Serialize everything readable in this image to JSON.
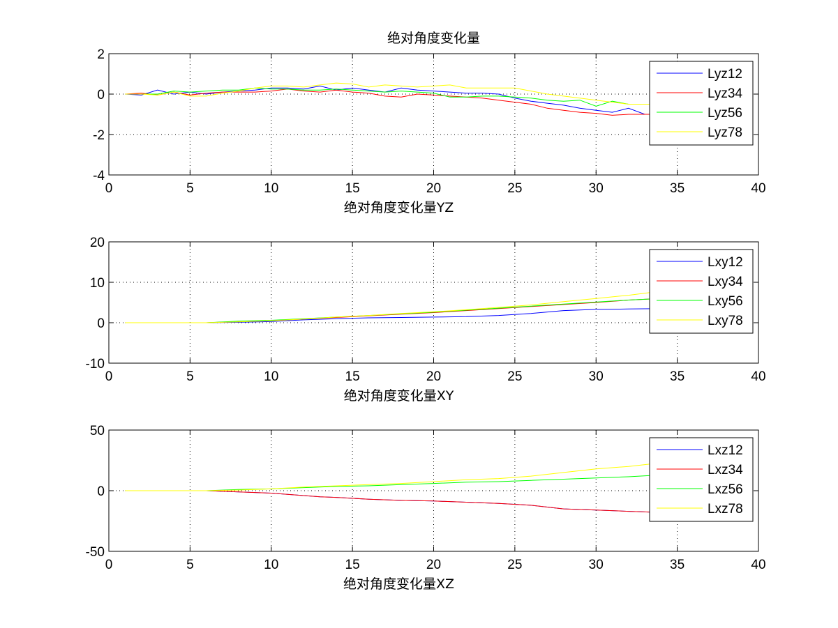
{
  "chart_data": [
    {
      "type": "line",
      "title": "绝对角度变化量",
      "xlabel": "绝对角度变化量YZ",
      "ylabel": "",
      "xlim": [
        0,
        40
      ],
      "ylim": [
        -4,
        2
      ],
      "xticks": [
        0,
        5,
        10,
        15,
        20,
        25,
        30,
        35,
        40
      ],
      "yticks": [
        2,
        0,
        -2,
        -4
      ],
      "grid": true,
      "legend_position": "top-right",
      "series": [
        {
          "name": "Lyz12",
          "color": "#0000ff",
          "x": [
            1,
            2,
            3,
            4,
            5,
            6,
            7,
            8,
            9,
            10,
            11,
            12,
            13,
            14,
            15,
            16,
            17,
            18,
            19,
            20,
            21,
            22,
            23,
            24,
            25,
            26,
            27,
            28,
            29,
            30,
            31,
            32,
            33,
            34,
            35,
            36
          ],
          "y": [
            0,
            -0.05,
            0.2,
            0,
            0.1,
            0,
            0.1,
            0.15,
            0.2,
            0.3,
            0.3,
            0.25,
            0.4,
            0.2,
            0.3,
            0.2,
            0.1,
            0.3,
            0.2,
            0.15,
            0.1,
            0.05,
            0.05,
            0,
            -0.2,
            -0.35,
            -0.45,
            -0.55,
            -0.7,
            -0.8,
            -0.9,
            -0.7,
            -1.0,
            -1.0,
            -1.0,
            -1.0
          ]
        },
        {
          "name": "Lyz34",
          "color": "#ff0000",
          "x": [
            1,
            2,
            3,
            4,
            5,
            6,
            7,
            8,
            9,
            10,
            11,
            12,
            13,
            14,
            15,
            16,
            17,
            18,
            19,
            20,
            21,
            22,
            23,
            24,
            25,
            26,
            27,
            28,
            29,
            30,
            31,
            32,
            33,
            34,
            35,
            36
          ],
          "y": [
            0,
            0.05,
            -0.05,
            0.1,
            -0.05,
            0.05,
            0.1,
            0.1,
            0.1,
            0.15,
            0.25,
            0.15,
            0.1,
            0.2,
            0.1,
            0.05,
            -0.1,
            -0.15,
            0,
            -0.05,
            -0.1,
            -0.15,
            -0.2,
            -0.3,
            -0.4,
            -0.5,
            -0.7,
            -0.8,
            -0.9,
            -0.95,
            -1.05,
            -1.0,
            -1.0,
            -1.0,
            -1.0,
            -1.0
          ]
        },
        {
          "name": "Lyz56",
          "color": "#00ff00",
          "x": [
            1,
            2,
            3,
            4,
            5,
            6,
            7,
            8,
            9,
            10,
            11,
            12,
            13,
            14,
            15,
            16,
            17,
            18,
            19,
            20,
            21,
            22,
            23,
            24,
            25,
            26,
            27,
            28,
            29,
            30,
            31,
            32,
            33,
            34,
            35,
            36
          ],
          "y": [
            0,
            0,
            0,
            0.15,
            0.1,
            0.15,
            0.2,
            0.2,
            0.3,
            0.25,
            0.25,
            0.2,
            0.2,
            0.25,
            0.2,
            0.15,
            0.1,
            0.15,
            0.1,
            0.05,
            -0.15,
            -0.15,
            -0.1,
            -0.1,
            -0.15,
            -0.2,
            -0.3,
            -0.35,
            -0.3,
            -0.6,
            -0.35,
            -0.5,
            -0.5,
            -0.5,
            -0.5,
            -0.5
          ]
        },
        {
          "name": "Lyz78",
          "color": "#ffff00",
          "x": [
            1,
            2,
            3,
            4,
            5,
            6,
            7,
            8,
            9,
            10,
            11,
            12,
            13,
            14,
            15,
            16,
            17,
            18,
            19,
            20,
            21,
            22,
            23,
            24,
            25,
            26,
            27,
            28,
            29,
            30,
            31,
            32,
            33,
            34,
            35,
            36
          ],
          "y": [
            0,
            0,
            -0.05,
            0.1,
            -0.1,
            -0.1,
            0.05,
            0.15,
            0.3,
            0.4,
            0.4,
            0.35,
            0.45,
            0.55,
            0.5,
            0.35,
            0.45,
            0.4,
            0.35,
            0.4,
            0.45,
            0.3,
            0.3,
            0.3,
            0.3,
            0.15,
            0,
            -0.1,
            -0.2,
            -0.3,
            -0.4,
            -0.5,
            -0.5,
            -0.5,
            -0.5,
            -0.5
          ]
        }
      ]
    },
    {
      "type": "line",
      "title": "",
      "xlabel": "绝对角度变化量XY",
      "ylabel": "",
      "xlim": [
        0,
        40
      ],
      "ylim": [
        -10,
        20
      ],
      "xticks": [
        0,
        5,
        10,
        15,
        20,
        25,
        30,
        35,
        40
      ],
      "yticks": [
        20,
        10,
        0,
        -10
      ],
      "grid": true,
      "legend_position": "top-right",
      "series": [
        {
          "name": "Lxy12",
          "color": "#0000ff",
          "x": [
            1,
            6,
            8,
            10,
            12,
            14,
            16,
            18,
            20,
            22,
            24,
            26,
            28,
            30,
            32,
            34,
            36
          ],
          "y": [
            0,
            0,
            0.1,
            0.3,
            0.7,
            1.0,
            1.2,
            1.3,
            1.4,
            1.5,
            1.8,
            2.3,
            3.0,
            3.3,
            3.4,
            3.5,
            3.5
          ]
        },
        {
          "name": "Lxy34",
          "color": "#ff0000",
          "x": [
            1,
            6,
            8,
            10,
            12,
            14,
            16,
            18,
            20,
            22,
            24,
            26,
            28,
            30,
            32,
            34,
            36
          ],
          "y": [
            0,
            0,
            0.3,
            0.5,
            0.9,
            1.3,
            1.7,
            2.1,
            2.5,
            3.0,
            3.5,
            4.0,
            4.5,
            5.0,
            5.6,
            6.0,
            6.2
          ]
        },
        {
          "name": "Lxy56",
          "color": "#00ff00",
          "x": [
            1,
            6,
            8,
            10,
            12,
            14,
            16,
            18,
            20,
            22,
            24,
            26,
            28,
            30,
            32,
            34,
            36
          ],
          "y": [
            0,
            0,
            0.4,
            0.6,
            1.0,
            1.4,
            1.8,
            2.2,
            2.6,
            3.1,
            3.6,
            4.1,
            4.6,
            5.1,
            5.6,
            6.0,
            6.2
          ]
        },
        {
          "name": "Lxy78",
          "color": "#ffff00",
          "x": [
            1,
            6,
            8,
            10,
            12,
            14,
            16,
            18,
            20,
            22,
            24,
            26,
            28,
            30,
            32,
            34,
            36
          ],
          "y": [
            0,
            0,
            0.2,
            0.5,
            0.9,
            1.4,
            1.8,
            2.3,
            2.7,
            3.2,
            3.8,
            4.4,
            5.2,
            6.0,
            6.8,
            7.8,
            8.5
          ]
        }
      ]
    },
    {
      "type": "line",
      "title": "",
      "xlabel": "绝对角度变化量XZ",
      "ylabel": "",
      "xlim": [
        0,
        40
      ],
      "ylim": [
        -50,
        50
      ],
      "xticks": [
        0,
        5,
        10,
        15,
        20,
        25,
        30,
        35,
        40
      ],
      "yticks": [
        50,
        0,
        -50
      ],
      "grid": true,
      "legend_position": "top-right",
      "series": [
        {
          "name": "Lxz12",
          "color": "#0000ff",
          "x": [
            1,
            6,
            8,
            10,
            11,
            12,
            13,
            14,
            16,
            18,
            20,
            22,
            24,
            26,
            28,
            30,
            32,
            34,
            36
          ],
          "y": [
            0,
            0,
            -1,
            -2,
            -3,
            -4,
            -5,
            -5.5,
            -7,
            -8,
            -8.5,
            -9.5,
            -10.5,
            -12,
            -15,
            -16,
            -17,
            -18,
            -18
          ]
        },
        {
          "name": "Lxz34",
          "color": "#ff0000",
          "x": [
            1,
            6,
            8,
            10,
            11,
            12,
            13,
            14,
            16,
            18,
            20,
            22,
            24,
            26,
            28,
            30,
            32,
            34,
            36
          ],
          "y": [
            0,
            0,
            -1,
            -2,
            -3,
            -4,
            -5,
            -5.5,
            -7,
            -8,
            -8.5,
            -9.5,
            -10.5,
            -12,
            -15,
            -16,
            -17,
            -18,
            -18
          ]
        },
        {
          "name": "Lxz56",
          "color": "#00ff00",
          "x": [
            1,
            6,
            8,
            10,
            12,
            14,
            16,
            18,
            20,
            22,
            24,
            26,
            28,
            30,
            32,
            34,
            36
          ],
          "y": [
            0,
            0,
            1,
            1.5,
            2.5,
            3.5,
            4,
            5,
            6,
            7,
            7.5,
            8.5,
            9.5,
            10.5,
            11.5,
            13,
            14
          ]
        },
        {
          "name": "Lxz78",
          "color": "#ffff00",
          "x": [
            1,
            6,
            8,
            10,
            12,
            14,
            16,
            18,
            20,
            22,
            24,
            26,
            28,
            30,
            32,
            34,
            36
          ],
          "y": [
            0,
            0,
            0.5,
            1.5,
            3,
            4,
            5,
            6,
            7.5,
            9,
            10,
            12,
            15,
            18,
            20,
            23,
            24
          ]
        }
      ]
    }
  ]
}
